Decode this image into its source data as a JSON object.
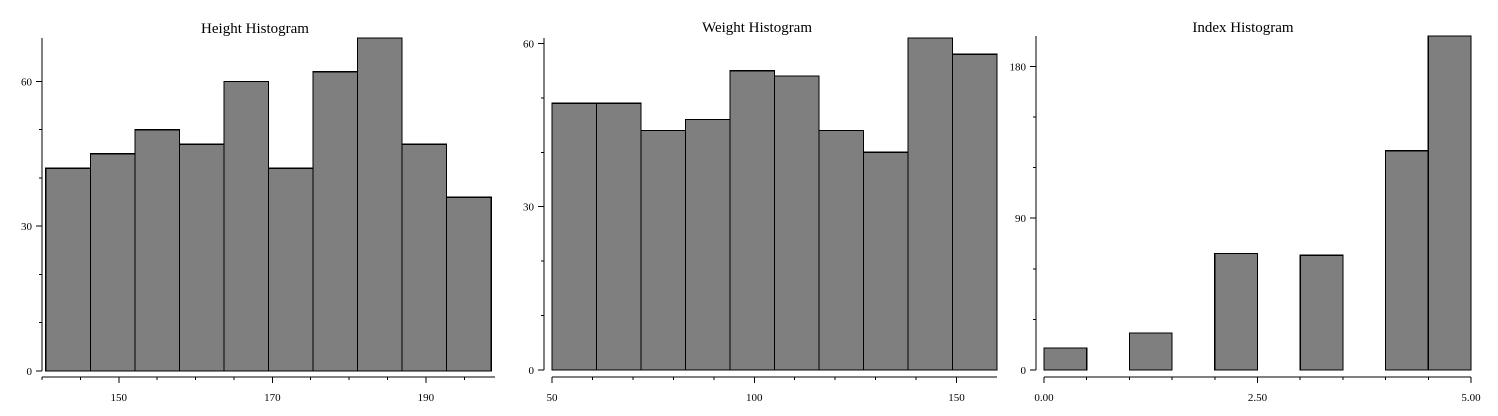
{
  "colors": {
    "bar_fill": "#7f7f7f",
    "bar_stroke": "#000000",
    "axis": "#000000",
    "background": "#ffffff"
  },
  "chart_data": [
    {
      "type": "bar",
      "title": "Height Histogram",
      "xlabel": "",
      "ylabel": "",
      "grid": false,
      "xlim": [
        140,
        199
      ],
      "ylim": [
        0,
        69
      ],
      "bin_edges": [
        140.5,
        146.3,
        152.1,
        157.9,
        163.7,
        169.5,
        175.3,
        181.1,
        186.9,
        192.7,
        198.5
      ],
      "values": [
        42,
        45,
        50,
        47,
        60,
        42,
        62,
        69,
        47,
        36
      ],
      "x_ticks": [
        150,
        170,
        190
      ],
      "x_tick_labels": [
        "150",
        "170",
        "190"
      ],
      "x_minor_ticks": [
        140,
        145,
        150,
        155,
        160,
        165,
        170,
        175,
        180,
        185,
        190,
        195
      ],
      "y_ticks": [
        0,
        30,
        60
      ],
      "y_tick_labels": [
        "0",
        "30",
        "60"
      ],
      "y_minor_ticks": [
        0,
        10,
        20,
        30,
        40,
        50,
        60
      ]
    },
    {
      "type": "bar",
      "title": "Weight Histogram",
      "xlabel": "",
      "ylabel": "",
      "grid": false,
      "xlim": [
        50,
        160
      ],
      "ylim": [
        0,
        61
      ],
      "bin_edges": [
        50,
        61,
        72,
        83,
        94,
        105,
        116,
        127,
        138,
        149,
        160
      ],
      "values": [
        49,
        49,
        44,
        46,
        55,
        54,
        44,
        40,
        61,
        58
      ],
      "x_ticks": [
        50,
        100,
        150
      ],
      "x_tick_labels": [
        "50",
        "100",
        "150"
      ],
      "x_minor_ticks": [
        50,
        60,
        70,
        80,
        90,
        100,
        110,
        120,
        130,
        140,
        150
      ],
      "y_ticks": [
        0,
        30,
        60
      ],
      "y_tick_labels": [
        "0",
        "30",
        "60"
      ],
      "y_minor_ticks": [
        0,
        10,
        20,
        30,
        40,
        50,
        60
      ]
    },
    {
      "type": "bar",
      "title": "Index Histogram",
      "xlabel": "",
      "ylabel": "",
      "grid": false,
      "xlim": [
        0,
        5
      ],
      "ylim": [
        0,
        198
      ],
      "bin_edges": [
        0,
        0.5,
        1.0,
        1.5,
        2.0,
        2.5,
        3.0,
        3.5,
        4.0,
        4.5,
        5.0
      ],
      "values": [
        13,
        0,
        22,
        0,
        69,
        0,
        68,
        0,
        130,
        198
      ],
      "x_ticks": [
        0,
        2.5,
        5
      ],
      "x_tick_labels": [
        "0.00",
        "2.50",
        "5.00"
      ],
      "x_minor_ticks": [
        0,
        0.5,
        1.0,
        1.5,
        2.0,
        2.5,
        3.0,
        3.5,
        4.0,
        4.5,
        5.0
      ],
      "y_ticks": [
        0,
        90,
        180
      ],
      "y_tick_labels": [
        "0",
        "90",
        "180"
      ],
      "y_minor_ticks": [
        0,
        30,
        60,
        90,
        120,
        150,
        180
      ]
    }
  ]
}
